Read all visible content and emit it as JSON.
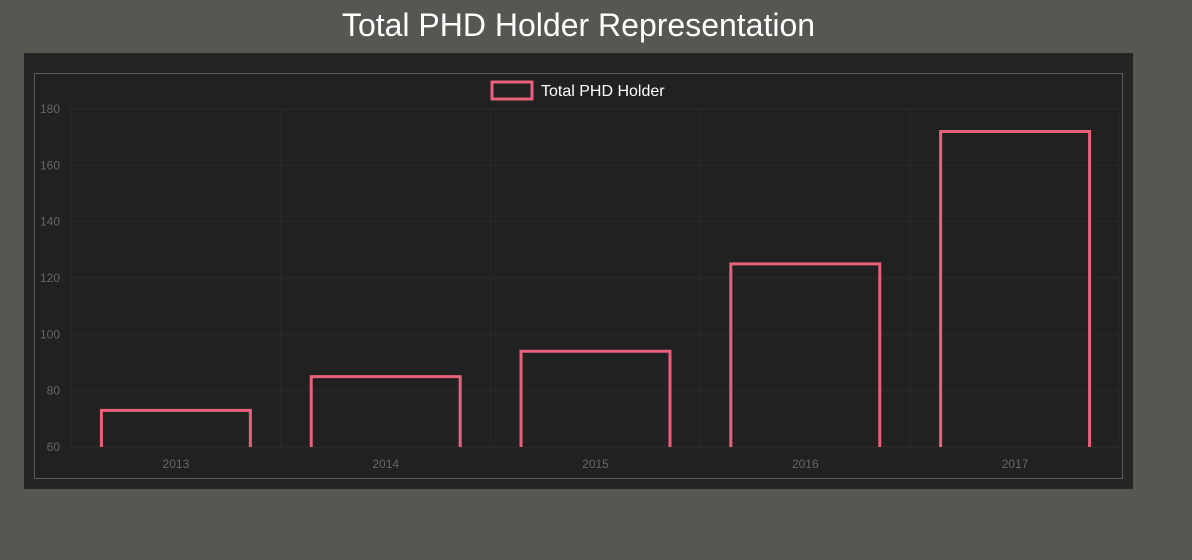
{
  "title": "Total PHD Holder Representation",
  "colors": {
    "background": "#575751",
    "panel": "#252525",
    "plot": "#212121",
    "bar_border": "#e8607a",
    "tick_text": "#666666",
    "grid": "#2a2a2a"
  },
  "chart_data": {
    "type": "bar",
    "title": "Total PHD Holder Representation",
    "categories": [
      "2013",
      "2014",
      "2015",
      "2016",
      "2017"
    ],
    "series": [
      {
        "name": "Total PHD Holder",
        "values": [
          73,
          85,
          94,
          125,
          172
        ]
      }
    ],
    "xlabel": "",
    "ylabel": "",
    "ylim": [
      60,
      180
    ],
    "yticks": [
      "60",
      "80",
      "100",
      "120",
      "140",
      "160",
      "180"
    ],
    "grid": true,
    "legend_position": "top-center"
  }
}
